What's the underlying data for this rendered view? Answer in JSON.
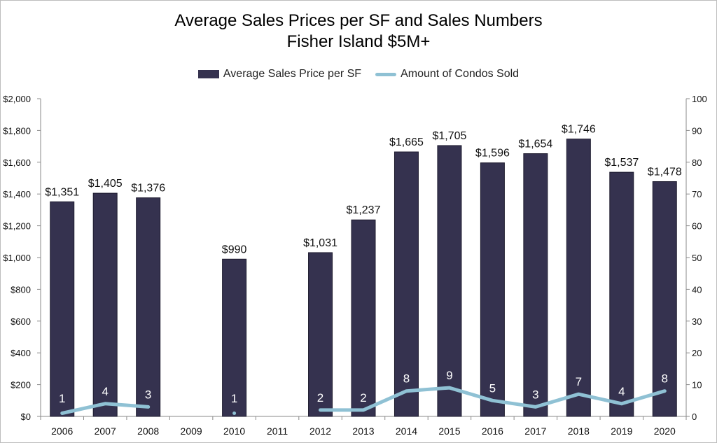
{
  "chart_data": {
    "type": "bar",
    "title": "Average Sales Prices per SF and Sales Numbers",
    "subtitle": "Fisher Island $5M+",
    "categories": [
      "2006",
      "2007",
      "2008",
      "2009",
      "2010",
      "2011",
      "2012",
      "2013",
      "2014",
      "2015",
      "2016",
      "2017",
      "2018",
      "2019",
      "2020"
    ],
    "series": [
      {
        "name": "Average Sales Price per SF",
        "type": "bar",
        "axis": "left",
        "values": [
          1351,
          1405,
          1376,
          null,
          990,
          null,
          1031,
          1237,
          1665,
          1705,
          1596,
          1654,
          1746,
          1537,
          1478
        ],
        "labels": [
          "$1,351",
          "$1,405",
          "$1,376",
          "",
          "$990",
          "",
          "$1,031",
          "$1,237",
          "$1,665",
          "$1,705",
          "$1,596",
          "$1,654",
          "$1,746",
          "$1,537",
          "$1,478"
        ],
        "color": "#35324f"
      },
      {
        "name": "Amount of Condos Sold",
        "type": "line",
        "axis": "right",
        "values": [
          1,
          4,
          3,
          null,
          1,
          null,
          2,
          2,
          8,
          9,
          5,
          3,
          7,
          4,
          8
        ],
        "labels": [
          "1",
          "4",
          "3",
          "",
          "1",
          "",
          "2",
          "2",
          "8",
          "9",
          "5",
          "3",
          "7",
          "4",
          "8"
        ],
        "color": "#8fc1d4"
      }
    ],
    "y_left": {
      "min": 0,
      "max": 2000,
      "step": 200,
      "ticks": [
        "$0",
        "$200",
        "$400",
        "$600",
        "$800",
        "$1,000",
        "$1,200",
        "$1,400",
        "$1,600",
        "$1,800",
        "$2,000"
      ]
    },
    "y_right": {
      "min": 0,
      "max": 100,
      "step": 10,
      "ticks": [
        "0",
        "10",
        "20",
        "30",
        "40",
        "50",
        "60",
        "70",
        "80",
        "90",
        "100"
      ]
    },
    "grid": false,
    "legend_position": "top"
  }
}
